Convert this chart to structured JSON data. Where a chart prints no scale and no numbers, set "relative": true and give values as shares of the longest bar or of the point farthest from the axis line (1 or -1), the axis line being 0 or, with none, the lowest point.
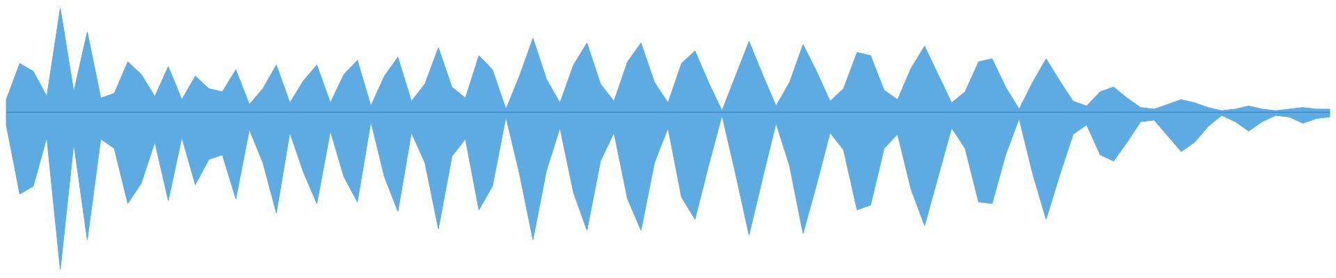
{
  "chart_data": {
    "type": "area",
    "relative": true,
    "ref_lines": [
      {
        "axis": "y",
        "value": 0,
        "color": "#3d7fb8"
      }
    ],
    "categories": [
      null,
      null,
      null,
      null,
      null,
      null,
      null,
      null,
      null,
      null,
      null,
      null,
      null,
      null,
      null,
      null,
      null,
      null,
      null,
      null,
      null,
      null,
      null,
      null,
      null,
      null,
      null,
      null,
      null,
      null,
      null,
      null,
      null,
      null,
      null,
      null,
      null,
      null,
      null,
      null,
      null,
      null,
      null,
      null,
      null,
      null,
      null,
      null,
      null,
      null,
      null,
      null,
      null,
      null,
      null,
      null,
      null,
      null,
      null,
      null,
      null,
      null,
      null,
      null,
      null,
      null,
      null,
      null,
      null,
      null,
      null,
      null,
      null,
      null,
      null,
      null,
      null,
      null,
      null,
      null,
      null,
      null,
      null,
      null,
      null,
      null,
      null,
      null,
      null,
      null,
      null,
      null,
      null,
      null,
      null,
      null,
      null,
      null,
      null
    ],
    "series": [
      {
        "color": "#5dabe2",
        "values": [
          0.08,
          0.31,
          0.26,
          0.1,
          0.66,
          0.13,
          0.51,
          0.09,
          0.12,
          0.32,
          0.24,
          0.1,
          0.29,
          0.08,
          0.23,
          0.15,
          0.13,
          0.27,
          0.05,
          0.15,
          0.3,
          0.06,
          0.2,
          0.3,
          0.06,
          0.24,
          0.33,
          0.04,
          0.23,
          0.35,
          0.07,
          0.18,
          0.41,
          0.16,
          0.09,
          0.36,
          0.27,
          0.02,
          0.23,
          0.47,
          0.21,
          0.06,
          0.3,
          0.44,
          0.18,
          0.07,
          0.32,
          0.44,
          0.19,
          0.06,
          0.31,
          0.39,
          0.19,
          0.01,
          0.23,
          0.45,
          0.24,
          0.04,
          0.19,
          0.43,
          0.26,
          0.07,
          0.15,
          0.38,
          0.36,
          0.14,
          0.08,
          0.28,
          0.42,
          0.24,
          0.06,
          0.13,
          0.32,
          0.34,
          0.16,
          0.02,
          0.19,
          0.34,
          0.2,
          0.07,
          0.04,
          0.13,
          0.16,
          0.09,
          0.03,
          0.02,
          0.05,
          0.08,
          0.06,
          0.03,
          0.01,
          0.02,
          0.04,
          0.02,
          0.01,
          0.02,
          0.03,
          0.02,
          0.02
        ]
      },
      {
        "color": "#5dabe2",
        "values": [
          -0.08,
          -0.52,
          -0.47,
          -0.16,
          -1.0,
          -0.2,
          -0.81,
          -0.17,
          -0.23,
          -0.58,
          -0.45,
          -0.19,
          -0.56,
          -0.16,
          -0.46,
          -0.3,
          -0.27,
          -0.55,
          -0.11,
          -0.32,
          -0.64,
          -0.13,
          -0.38,
          -0.58,
          -0.12,
          -0.41,
          -0.57,
          -0.06,
          -0.41,
          -0.63,
          -0.13,
          -0.32,
          -0.74,
          -0.28,
          -0.17,
          -0.62,
          -0.47,
          -0.03,
          -0.39,
          -0.81,
          -0.37,
          -0.1,
          -0.51,
          -0.75,
          -0.31,
          -0.13,
          -0.55,
          -0.75,
          -0.32,
          -0.1,
          -0.54,
          -0.68,
          -0.34,
          -0.02,
          -0.39,
          -0.78,
          -0.42,
          -0.07,
          -0.34,
          -0.77,
          -0.46,
          -0.13,
          -0.24,
          -0.62,
          -0.59,
          -0.23,
          -0.14,
          -0.49,
          -0.72,
          -0.41,
          -0.1,
          -0.23,
          -0.57,
          -0.58,
          -0.27,
          -0.04,
          -0.39,
          -0.68,
          -0.4,
          -0.14,
          -0.08,
          -0.27,
          -0.31,
          -0.19,
          -0.06,
          -0.05,
          -0.15,
          -0.25,
          -0.19,
          -0.09,
          -0.02,
          -0.06,
          -0.12,
          -0.06,
          -0.02,
          -0.03,
          -0.07,
          -0.04,
          -0.03
        ]
      }
    ]
  }
}
